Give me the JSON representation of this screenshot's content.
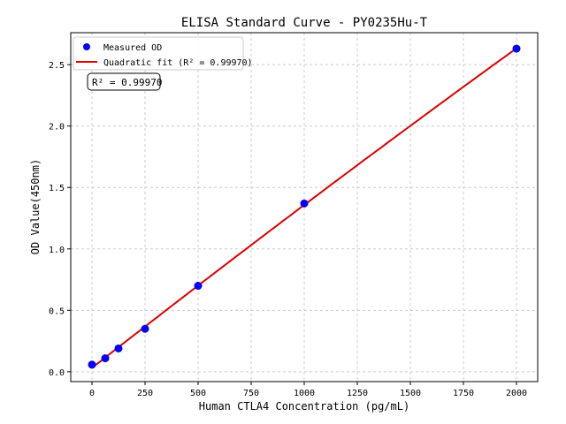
{
  "chart_data": {
    "type": "scatter",
    "title": "ELISA Standard Curve - PY0235Hu-T",
    "xlabel": "Human CTLA4 Concentration (pg/mL)",
    "ylabel": "OD Value(450nm)",
    "xlim": [
      -100,
      2100
    ],
    "ylim": [
      -0.08,
      2.76
    ],
    "xticks": [
      0,
      250,
      500,
      750,
      1000,
      1250,
      1500,
      1750,
      2000
    ],
    "yticks": [
      0.0,
      0.5,
      1.0,
      1.5,
      2.0,
      2.5
    ],
    "ytick_labels": [
      "0.0",
      "0.5",
      "1.0",
      "1.5",
      "2.0",
      "2.5"
    ],
    "grid": true,
    "legend_position": "top-left",
    "series": [
      {
        "name": "Measured OD",
        "kind": "points",
        "color": "#0000ff",
        "x": [
          0,
          62.5,
          125,
          250,
          500,
          1000,
          2000
        ],
        "y": [
          0.058,
          0.11,
          0.19,
          0.35,
          0.7,
          1.37,
          2.63
        ]
      },
      {
        "name": "Quadratic fit (R² = 0.99970)",
        "kind": "quadratic-fit",
        "color": "#dd0000"
      }
    ],
    "annotation": "R² = 0.99970"
  }
}
